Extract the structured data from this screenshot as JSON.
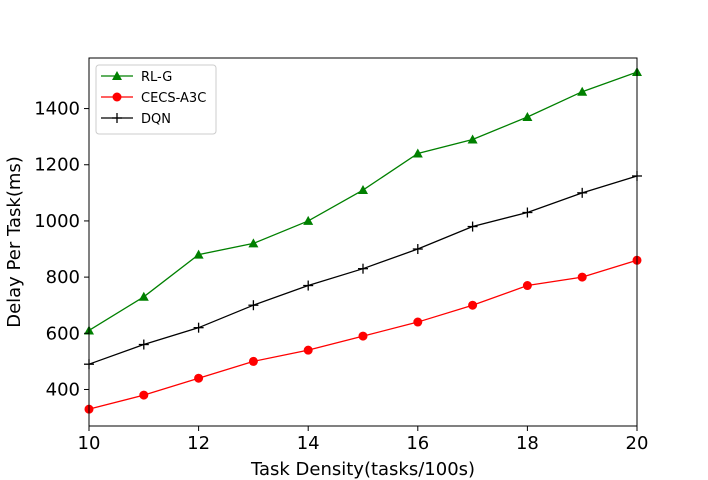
{
  "chart_data": {
    "type": "line",
    "title": "",
    "xlabel": "Task Density(tasks/100s)",
    "ylabel": "Delay Per Task(ms)",
    "xlim": [
      10,
      20
    ],
    "ylim": [
      270,
      1580
    ],
    "x_ticks": [
      10,
      12,
      14,
      16,
      18,
      20
    ],
    "y_ticks": [
      400,
      600,
      800,
      1000,
      1200,
      1400
    ],
    "x": [
      10,
      11,
      12,
      13,
      14,
      15,
      16,
      17,
      18,
      19,
      20
    ],
    "series": [
      {
        "name": "RL-G",
        "color": "#008000",
        "marker": "triangle",
        "values": [
          610,
          730,
          880,
          920,
          1000,
          1110,
          1240,
          1290,
          1370,
          1460,
          1530
        ]
      },
      {
        "name": "CECS-A3C",
        "color": "#ff0000",
        "marker": "circle",
        "values": [
          330,
          380,
          440,
          500,
          540,
          590,
          640,
          700,
          770,
          800,
          860
        ]
      },
      {
        "name": "DQN",
        "color": "#000000",
        "marker": "plus",
        "values": [
          490,
          560,
          620,
          700,
          770,
          830,
          900,
          980,
          1030,
          1100,
          1160
        ]
      }
    ],
    "legend_position": "top-left",
    "grid": false
  }
}
